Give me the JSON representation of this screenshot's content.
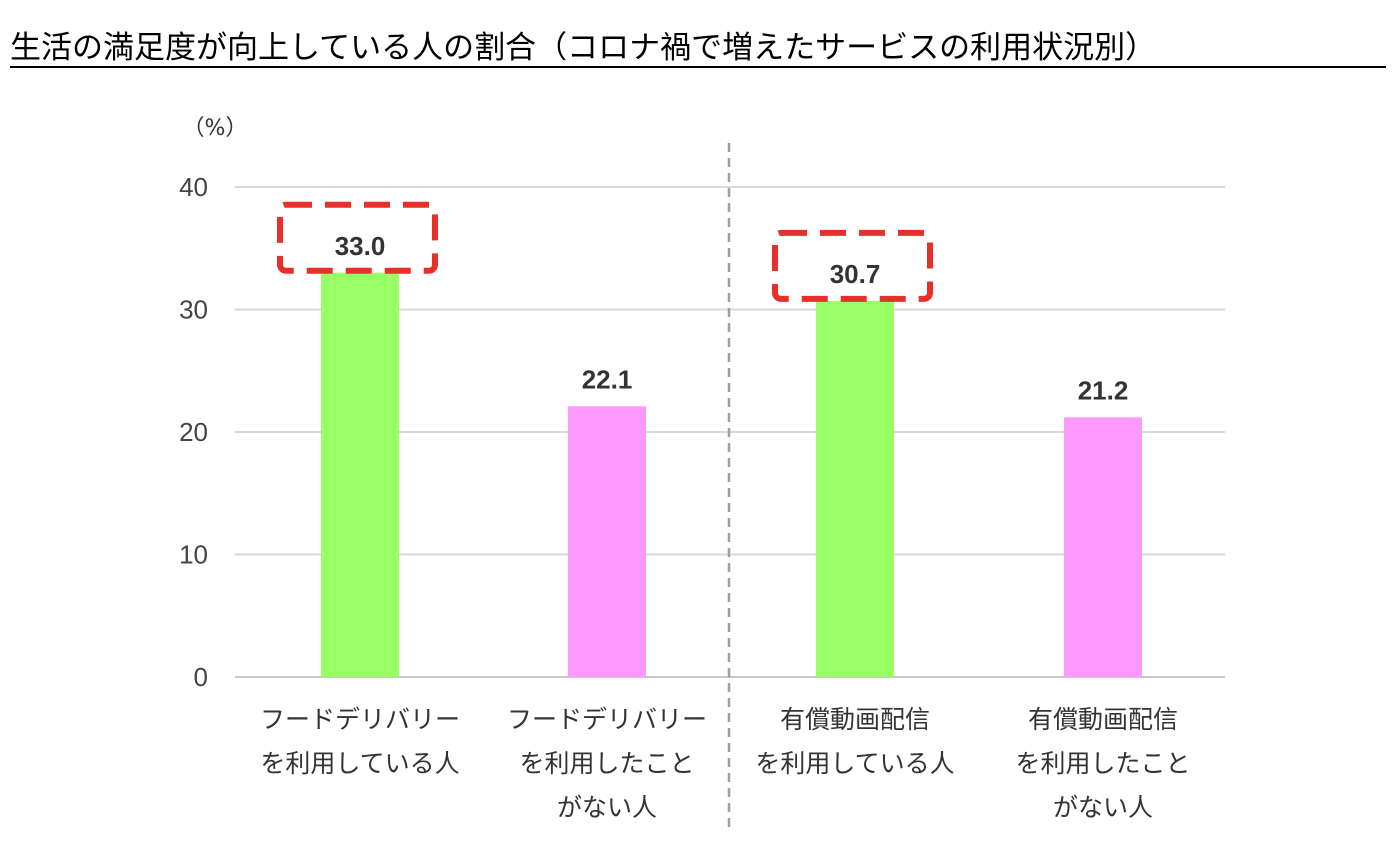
{
  "title": "生活の満足度が向上している人の割合（コロナ禍で増えたサービスの利用状況別）",
  "chart_data": {
    "type": "bar",
    "unit_label": "（%）",
    "ylim": [
      0,
      40
    ],
    "yticks": [
      0,
      10,
      20,
      30,
      40
    ],
    "grid": true,
    "categories": [
      [
        "フードデリバリー",
        "を利用している人"
      ],
      [
        "フードデリバリー",
        "を利用したこと",
        "がない人"
      ],
      [
        "有償動画配信",
        "を利用している人"
      ],
      [
        "有償動画配信",
        "を利用したこと",
        "がない人"
      ]
    ],
    "values": [
      33.0,
      22.1,
      30.7,
      21.2
    ],
    "value_labels": [
      "33.0",
      "22.1",
      "30.7",
      "21.2"
    ],
    "bar_colors": [
      "#99ff66",
      "#ff99ff",
      "#99ff66",
      "#ff99ff"
    ],
    "highlighted": [
      true,
      false,
      true,
      false
    ],
    "highlight_color": "#e8302a",
    "group_separator_after_index": 1
  }
}
